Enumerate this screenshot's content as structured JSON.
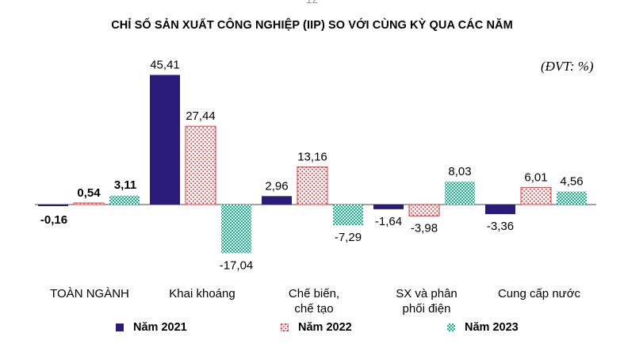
{
  "page_number": "12",
  "title": "CHỈ SỐ SẢN XUẤT CÔNG NGHIỆP (IIP) SO VỚI CÙNG KỲ QUA CÁC NĂM",
  "unit": "(ĐVT: %)",
  "colors": {
    "s2021": "#2a1a7a",
    "s2022": "#e03a3a",
    "s2023": "#1fae8c"
  },
  "chart_data": {
    "type": "bar",
    "title": "CHỈ SỐ SẢN XUẤT CÔNG NGHIỆP (IIP) SO VỚI CÙNG KỲ QUA CÁC NĂM",
    "unit": "(ĐVT: %)",
    "categories": [
      "TOÀN NGÀNH",
      "Khai khoáng",
      "Chế biến, chế tạo",
      "SX và phân phối điện",
      "Cung cấp nước"
    ],
    "category_lines": [
      [
        "TOÀN NGÀNH"
      ],
      [
        "Khai khoáng"
      ],
      [
        "Chế biến,",
        "chế tạo"
      ],
      [
        "SX và phân",
        "phối điện"
      ],
      [
        "Cung cấp nước"
      ]
    ],
    "series": [
      {
        "name": "Năm 2021",
        "values": [
          -0.16,
          45.41,
          2.96,
          -1.64,
          -3.36
        ],
        "labels": [
          "-0,16",
          "45,41",
          "2,96",
          "-1,64",
          "-3,36"
        ]
      },
      {
        "name": "Năm 2022",
        "values": [
          0.54,
          27.44,
          13.16,
          -3.98,
          6.01
        ],
        "labels": [
          "0,54",
          "27,44",
          "13,16",
          "-3,98",
          "6,01"
        ]
      },
      {
        "name": "Năm 2023",
        "values": [
          3.11,
          -17.04,
          -7.29,
          8.03,
          4.56
        ],
        "labels": [
          "3,11",
          "-17,04",
          "-7,29",
          "8,03",
          "4,56"
        ]
      }
    ],
    "legend_position": "bottom",
    "grid": false
  }
}
